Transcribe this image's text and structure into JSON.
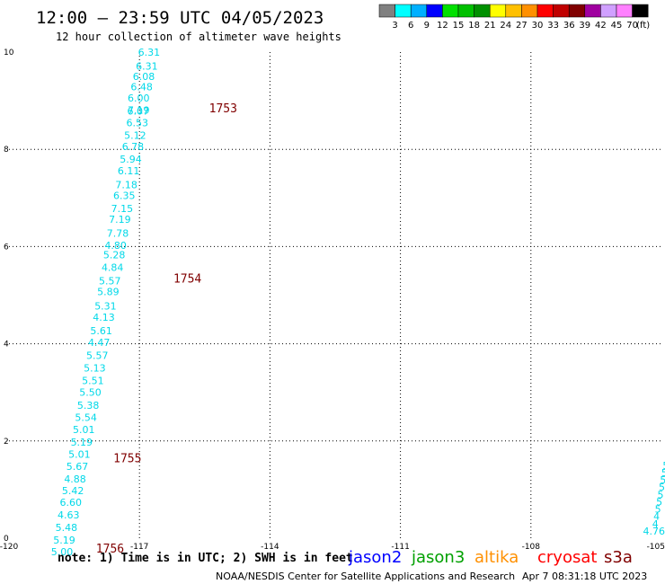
{
  "header": {
    "title": "12:00 — 23:59 UTC 04/05/2023",
    "subtitle": "12 hour collection of altimeter wave heights"
  },
  "colorbar": {
    "colors": [
      "#808080",
      "#00ffff",
      "#00b0ff",
      "#0000ff",
      "#00e000",
      "#00c000",
      "#009000",
      "#ffff00",
      "#ffc000",
      "#ff9000",
      "#ff0000",
      "#c00000",
      "#800000",
      "#a000a0",
      "#d0a0ff",
      "#ff80ff",
      "#000000"
    ],
    "labels": [
      "3",
      "6",
      "9",
      "12",
      "15",
      "18",
      "21",
      "24",
      "27",
      "30",
      "33",
      "36",
      "39",
      "42",
      "45",
      "70"
    ],
    "unit": "(ft)"
  },
  "chart_data": {
    "type": "scatter",
    "title": "12:00 — 23:59 UTC 04/05/2023",
    "subtitle": "12 hour collection of altimeter wave heights",
    "xlim": [
      -120,
      -105
    ],
    "ylim": [
      0,
      10
    ],
    "xticks": [
      "-120",
      "-117",
      "-114",
      "-111",
      "-108",
      "-105"
    ],
    "yticks": [
      "0",
      "2",
      "4",
      "6",
      "8",
      "10"
    ],
    "grid": true,
    "units": "feet",
    "series": [
      {
        "name": "cryosat",
        "color": "#00d8e8",
        "points": [
          {
            "x": -116.78,
            "y": 10.0,
            "label": "6.31"
          },
          {
            "x": -116.83,
            "y": 9.71,
            "label": "6.31"
          },
          {
            "x": -116.9,
            "y": 9.5,
            "label": "6.08"
          },
          {
            "x": -116.95,
            "y": 9.29,
            "label": "6.48"
          },
          {
            "x": -117.02,
            "y": 9.06,
            "label": "6.00"
          },
          {
            "x": -117.02,
            "y": 8.81,
            "label": "7.19"
          },
          {
            "x": -117.03,
            "y": 8.79,
            "label": "6.07"
          },
          {
            "x": -117.05,
            "y": 8.55,
            "label": "6.53"
          },
          {
            "x": -117.1,
            "y": 8.29,
            "label": "5.12"
          },
          {
            "x": -117.15,
            "y": 8.06,
            "label": "6.78"
          },
          {
            "x": -117.2,
            "y": 7.8,
            "label": "5.94"
          },
          {
            "x": -117.25,
            "y": 7.56,
            "label": "6.11"
          },
          {
            "x": -117.3,
            "y": 7.27,
            "label": "7.18"
          },
          {
            "x": -117.35,
            "y": 7.05,
            "label": "6.35"
          },
          {
            "x": -117.4,
            "y": 6.78,
            "label": "7.15"
          },
          {
            "x": -117.45,
            "y": 6.56,
            "label": "7.19"
          },
          {
            "x": -117.5,
            "y": 6.28,
            "label": "7.78"
          },
          {
            "x": -117.55,
            "y": 6.03,
            "label": "4.80"
          },
          {
            "x": -117.58,
            "y": 5.83,
            "label": "5.28"
          },
          {
            "x": -117.62,
            "y": 5.57,
            "label": "4.84"
          },
          {
            "x": -117.68,
            "y": 5.3,
            "label": "5.57"
          },
          {
            "x": -117.72,
            "y": 5.07,
            "label": "5.89"
          },
          {
            "x": -117.78,
            "y": 4.78,
            "label": "5.31"
          },
          {
            "x": -117.82,
            "y": 4.55,
            "label": "4.13"
          },
          {
            "x": -117.88,
            "y": 4.27,
            "label": "5.61"
          },
          {
            "x": -117.93,
            "y": 4.03,
            "label": "4.47"
          },
          {
            "x": -117.97,
            "y": 3.76,
            "label": "5.57"
          },
          {
            "x": -118.03,
            "y": 3.5,
            "label": "5.13"
          },
          {
            "x": -118.07,
            "y": 3.24,
            "label": "5.51"
          },
          {
            "x": -118.13,
            "y": 3.0,
            "label": "5.50"
          },
          {
            "x": -118.18,
            "y": 2.74,
            "label": "5.38"
          },
          {
            "x": -118.23,
            "y": 2.49,
            "label": "5.54"
          },
          {
            "x": -118.28,
            "y": 2.24,
            "label": "5.01"
          },
          {
            "x": -118.33,
            "y": 1.98,
            "label": "5.19"
          },
          {
            "x": -118.38,
            "y": 1.73,
            "label": "5.01"
          },
          {
            "x": -118.43,
            "y": 1.48,
            "label": "5.67"
          },
          {
            "x": -118.48,
            "y": 1.22,
            "label": "4.88"
          },
          {
            "x": -118.53,
            "y": 0.98,
            "label": "5.42"
          },
          {
            "x": -118.58,
            "y": 0.74,
            "label": "6.60"
          },
          {
            "x": -118.63,
            "y": 0.48,
            "label": "4.63"
          },
          {
            "x": -118.68,
            "y": 0.22,
            "label": "5.48"
          },
          {
            "x": -118.73,
            "y": -0.04,
            "label": "5.19"
          },
          {
            "x": -118.78,
            "y": -0.28,
            "label": "5.00"
          }
        ]
      },
      {
        "name": "",
        "color": "#00d8e8",
        "points": [
          {
            "x": -104.9,
            "y": 1.5,
            "label": "5"
          },
          {
            "x": -104.93,
            "y": 1.35,
            "label": "5"
          },
          {
            "x": -104.96,
            "y": 1.2,
            "label": "5"
          },
          {
            "x": -104.99,
            "y": 1.05,
            "label": "5"
          },
          {
            "x": -105.02,
            "y": 0.9,
            "label": "5"
          },
          {
            "x": -105.05,
            "y": 0.75,
            "label": "5"
          },
          {
            "x": -105.08,
            "y": 0.6,
            "label": "5"
          },
          {
            "x": -105.11,
            "y": 0.45,
            "label": "4"
          },
          {
            "x": -105.14,
            "y": 0.3,
            "label": "4"
          },
          {
            "x": -105.17,
            "y": 0.15,
            "label": "4.76"
          }
        ]
      }
    ],
    "time_labels": [
      {
        "x": -115.4,
        "y": 8.85,
        "label": "1753"
      },
      {
        "x": -116.22,
        "y": 5.35,
        "label": "1754"
      },
      {
        "x": -117.6,
        "y": 1.65,
        "label": "1755"
      },
      {
        "x": -118.0,
        "y": -0.2,
        "label": "1756"
      }
    ],
    "satellites": [
      {
        "name": "jason2",
        "color": "#0000ff"
      },
      {
        "name": "jason3",
        "color": "#00a000"
      },
      {
        "name": "altika",
        "color": "#ff9000"
      },
      {
        "name": "cryosat",
        "color": "#ff0000"
      },
      {
        "name": "s3a",
        "color": "#800000"
      }
    ]
  },
  "footer": {
    "note": "note: 1) Time is in UTC; 2) SWH is in feet",
    "credit": "NOAA/NESDIS Center for Satellite Applications and Research",
    "timestamp": "Apr  7 08:31:18 UTC 2023"
  },
  "colors": {
    "data_label": "#00d8e8",
    "time_label": "#800000",
    "grid": "#000000"
  }
}
